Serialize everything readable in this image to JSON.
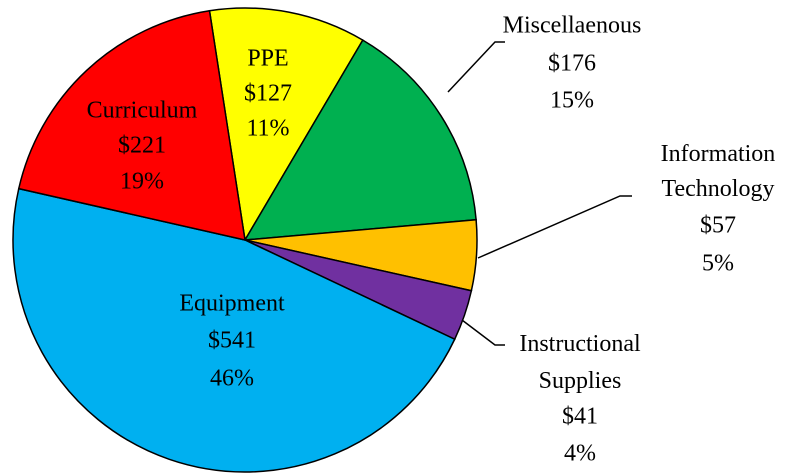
{
  "chart_data": {
    "type": "pie",
    "categories": [
      "PPE",
      "Miscellaenous",
      "Information Technology",
      "Instructional Supplies",
      "Equipment",
      "Curriculum"
    ],
    "values": [
      127,
      176,
      57,
      41,
      541,
      221
    ],
    "value_labels": [
      "$127",
      "$176",
      "$57",
      "$41",
      "$541",
      "$221"
    ],
    "percent_labels": [
      "11%",
      "15%",
      "5%",
      "4%",
      "46%",
      "19%"
    ],
    "colors": [
      "#ffff00",
      "#00b050",
      "#ffc000",
      "#7030a0",
      "#00b0f0",
      "#ff0000"
    ]
  }
}
